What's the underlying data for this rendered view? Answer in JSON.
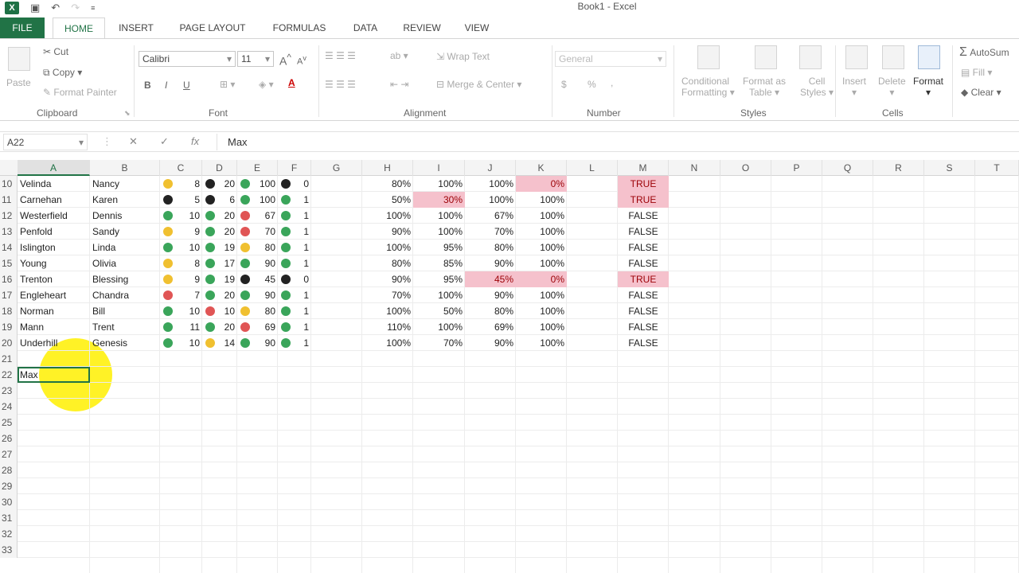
{
  "window": {
    "title": "Book1 - Excel"
  },
  "quick_access": {
    "icons": [
      "excel-icon",
      "save-icon",
      "undo-icon",
      "redo-icon",
      "customize-icon"
    ]
  },
  "tabs": [
    "FILE",
    "HOME",
    "INSERT",
    "PAGE LAYOUT",
    "FORMULAS",
    "DATA",
    "REVIEW",
    "VIEW"
  ],
  "ribbon": {
    "clipboard": {
      "paste": "Paste",
      "cut": "Cut",
      "copy": "Copy",
      "format_painter": "Format Painter",
      "label": "Clipboard"
    },
    "font": {
      "name": "Calibri",
      "size": "11",
      "bold": "B",
      "italic": "I",
      "underline": "U",
      "grow": "A",
      "shrink": "A",
      "label": "Font"
    },
    "alignment": {
      "wrap_text": "Wrap Text",
      "merge_center": "Merge & Center",
      "label": "Alignment"
    },
    "number": {
      "format": "General",
      "currency": "$",
      "percent": "%",
      "comma": ",",
      "label": "Number"
    },
    "styles": {
      "conditional": "Conditional",
      "conditional2": "Formatting",
      "format_table": "Format as",
      "format_table2": "Table",
      "cell_styles": "Cell",
      "cell_styles2": "Styles",
      "label": "Styles"
    },
    "cells": {
      "insert": "Insert",
      "delete": "Delete",
      "format": "Format",
      "label": "Cells"
    },
    "editing": {
      "autosum": "AutoSum",
      "fill": "Fill",
      "clear": "Clear"
    }
  },
  "formula_bar": {
    "name_box": "A22",
    "cancel": "✕",
    "enter": "✓",
    "fx": "fx",
    "content": "Max"
  },
  "columns": [
    "A",
    "B",
    "C",
    "D",
    "E",
    "F",
    "G",
    "H",
    "I",
    "J",
    "K",
    "L",
    "M",
    "N",
    "O",
    "P",
    "Q",
    "R",
    "S",
    "T"
  ],
  "colors": {
    "green": "#3aa55a",
    "yellow": "#f0c030",
    "red": "#e05555",
    "black": "#222222",
    "pink_fill": "#f5c1cc",
    "pink_text": "#9c0006"
  },
  "rows": [
    {
      "num": "10",
      "a": "Velinda",
      "b": "Nancy",
      "c": "8",
      "cd": "yellow",
      "d": "20",
      "dd": "black",
      "e": "100",
      "ed": "green",
      "f": "0",
      "fd": "black",
      "h": "80%",
      "i": "100%",
      "j": "100%",
      "k": "0%",
      "m": "TRUE",
      "hl": [
        "k",
        "m"
      ]
    },
    {
      "num": "11",
      "a": "Carnehan",
      "b": "Karen",
      "c": "5",
      "cd": "black",
      "d": "6",
      "dd": "black",
      "e": "100",
      "ed": "green",
      "f": "1",
      "fd": "green",
      "h": "50%",
      "i": "30%",
      "j": "100%",
      "k": "100%",
      "m": "TRUE",
      "hl": [
        "i",
        "m"
      ]
    },
    {
      "num": "12",
      "a": "Westerfield",
      "b": "Dennis",
      "c": "10",
      "cd": "green",
      "d": "20",
      "dd": "green",
      "e": "67",
      "ed": "red",
      "f": "1",
      "fd": "green",
      "h": "100%",
      "i": "100%",
      "j": "67%",
      "k": "100%",
      "m": "FALSE",
      "hl": []
    },
    {
      "num": "13",
      "a": "Penfold",
      "b": "Sandy",
      "c": "9",
      "cd": "yellow",
      "d": "20",
      "dd": "green",
      "e": "70",
      "ed": "red",
      "f": "1",
      "fd": "green",
      "h": "90%",
      "i": "100%",
      "j": "70%",
      "k": "100%",
      "m": "FALSE",
      "hl": []
    },
    {
      "num": "14",
      "a": "Islington",
      "b": "Linda",
      "c": "10",
      "cd": "green",
      "d": "19",
      "dd": "green",
      "e": "80",
      "ed": "yellow",
      "f": "1",
      "fd": "green",
      "h": "100%",
      "i": "95%",
      "j": "80%",
      "k": "100%",
      "m": "FALSE",
      "hl": []
    },
    {
      "num": "15",
      "a": "Young",
      "b": "Olivia",
      "c": "8",
      "cd": "yellow",
      "d": "17",
      "dd": "green",
      "e": "90",
      "ed": "green",
      "f": "1",
      "fd": "green",
      "h": "80%",
      "i": "85%",
      "j": "90%",
      "k": "100%",
      "m": "FALSE",
      "hl": []
    },
    {
      "num": "16",
      "a": "Trenton",
      "b": "Blessing",
      "c": "9",
      "cd": "yellow",
      "d": "19",
      "dd": "green",
      "e": "45",
      "ed": "black",
      "f": "0",
      "fd": "black",
      "h": "90%",
      "i": "95%",
      "j": "45%",
      "k": "0%",
      "m": "TRUE",
      "hl": [
        "j",
        "k",
        "m"
      ]
    },
    {
      "num": "17",
      "a": "Engleheart",
      "b": "Chandra",
      "c": "7",
      "cd": "red",
      "d": "20",
      "dd": "green",
      "e": "90",
      "ed": "green",
      "f": "1",
      "fd": "green",
      "h": "70%",
      "i": "100%",
      "j": "90%",
      "k": "100%",
      "m": "FALSE",
      "hl": []
    },
    {
      "num": "18",
      "a": "Norman",
      "b": "Bill",
      "c": "10",
      "cd": "green",
      "d": "10",
      "dd": "red",
      "e": "80",
      "ed": "yellow",
      "f": "1",
      "fd": "green",
      "h": "100%",
      "i": "50%",
      "j": "80%",
      "k": "100%",
      "m": "FALSE",
      "hl": []
    },
    {
      "num": "19",
      "a": "Mann",
      "b": "Trent",
      "c": "11",
      "cd": "green",
      "d": "20",
      "dd": "green",
      "e": "69",
      "ed": "red",
      "f": "1",
      "fd": "green",
      "h": "110%",
      "i": "100%",
      "j": "69%",
      "k": "100%",
      "m": "FALSE",
      "hl": []
    },
    {
      "num": "20",
      "a": "Underhill",
      "b": "Genesis",
      "c": "10",
      "cd": "green",
      "d": "14",
      "dd": "yellow",
      "e": "90",
      "ed": "green",
      "f": "1",
      "fd": "green",
      "h": "100%",
      "i": "70%",
      "j": "90%",
      "k": "100%",
      "m": "FALSE",
      "hl": []
    },
    {
      "num": "21"
    },
    {
      "num": "22",
      "a": "Max"
    },
    {
      "num": "23"
    },
    {
      "num": "24"
    },
    {
      "num": "25"
    },
    {
      "num": "26"
    },
    {
      "num": "27"
    },
    {
      "num": "28"
    },
    {
      "num": "29"
    },
    {
      "num": "30"
    },
    {
      "num": "31"
    },
    {
      "num": "32"
    },
    {
      "num": "33"
    }
  ]
}
